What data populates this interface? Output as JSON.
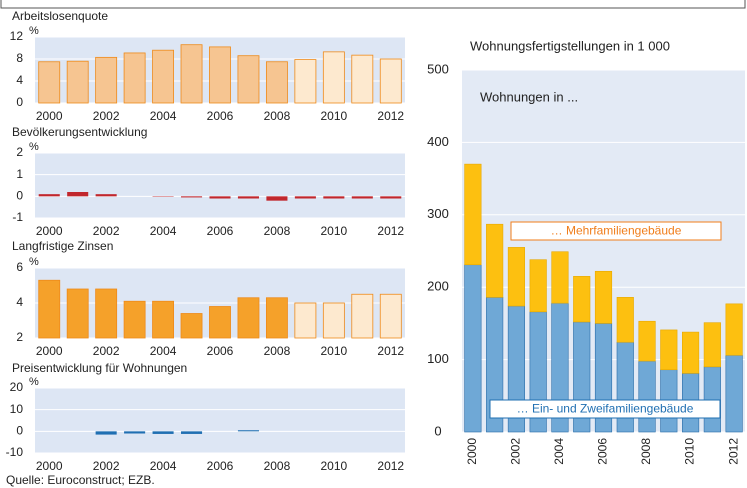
{
  "chart_data": [
    {
      "type": "bar",
      "title": "Arbeitslosenquote",
      "ylabel": "%",
      "categories": [
        "2000",
        null,
        "2002",
        null,
        "2004",
        null,
        "2006",
        null,
        "2008",
        null,
        "2010",
        null,
        "2012"
      ],
      "values": [
        7.5,
        7.6,
        8.3,
        9.1,
        9.6,
        10.6,
        10.2,
        8.6,
        7.5,
        7.9,
        9.3,
        8.7,
        8.0
      ],
      "colors": [
        "#f6c591",
        "#f6c591",
        "#f6c591",
        "#f6c591",
        "#f6c591",
        "#f6c591",
        "#f6c591",
        "#f6c591",
        "#f6c591",
        "#fde9cf",
        "#fde9cf",
        "#fde9cf",
        "#fde9cf"
      ],
      "ylim": [
        0,
        12
      ],
      "yticks": [
        0,
        4,
        8,
        12
      ],
      "grid": true
    },
    {
      "type": "bar",
      "title": "Bevölkerungsentwicklung",
      "ylabel": "%",
      "categories": [
        "2000",
        null,
        "2002",
        null,
        "2004",
        null,
        "2006",
        null,
        "2008",
        null,
        "2010",
        null,
        "2012"
      ],
      "values": [
        0.1,
        0.2,
        0.1,
        0.0,
        -0.02,
        -0.05,
        -0.1,
        -0.1,
        -0.2,
        -0.1,
        -0.1,
        -0.1,
        -0.1
      ],
      "color": "#c1272d",
      "ylim": [
        -1,
        2
      ],
      "yticks": [
        -1,
        0,
        1,
        2
      ],
      "grid": true
    },
    {
      "type": "bar",
      "title": "Langfristige Zinsen",
      "ylabel": "%",
      "categories": [
        "2000",
        null,
        "2002",
        null,
        "2004",
        null,
        "2006",
        null,
        "2008",
        null,
        "2010",
        null,
        "2012"
      ],
      "values": [
        5.3,
        4.8,
        4.8,
        4.1,
        4.1,
        3.4,
        3.8,
        4.3,
        4.3,
        4.0,
        4.0,
        4.5,
        4.5
      ],
      "colors": [
        "#f5a12a",
        "#f5a12a",
        "#f5a12a",
        "#f5a12a",
        "#f5a12a",
        "#f5a12a",
        "#f5a12a",
        "#f5a12a",
        "#f5a12a",
        "#fde9cf",
        "#fde9cf",
        "#fde9cf",
        "#fde9cf"
      ],
      "ylim": [
        2,
        6
      ],
      "yticks": [
        2,
        4,
        6
      ],
      "grid": true
    },
    {
      "type": "bar",
      "title": "Preisentwicklung für Wohnungen",
      "ylabel": "%",
      "categories": [
        "2000",
        null,
        "2002",
        null,
        "2004",
        null,
        "2006",
        null,
        "2008",
        null,
        "2010",
        null,
        "2012"
      ],
      "values": [
        0,
        0,
        -1.5,
        -1,
        -1.2,
        -1.2,
        0,
        0.5,
        0,
        0,
        0,
        0,
        0
      ],
      "color": "#1f6fb2",
      "ylim": [
        -10,
        20
      ],
      "yticks": [
        -10,
        0,
        10,
        20
      ],
      "grid": true
    },
    {
      "type": "stacked_bar",
      "title": "Wohnungsfertigstellungen in 1 000",
      "subtitle": "Wohnungen in ...",
      "categories": [
        "2000",
        null,
        "2002",
        null,
        "2004",
        null,
        "2006",
        null,
        "2008",
        null,
        "2010",
        null,
        "2012"
      ],
      "series": [
        {
          "name": "… Ein- und Zweifamiliengebäude",
          "color": "#6fa8d6",
          "values": [
            231,
            186,
            174,
            166,
            178,
            152,
            150,
            124,
            98,
            86,
            81,
            90,
            106
          ]
        },
        {
          "name": "… Mehrfamiliengebäude",
          "color": "#fdc010",
          "values": [
            139,
            101,
            81,
            72,
            71,
            63,
            72,
            62,
            55,
            55,
            57,
            61,
            71
          ]
        }
      ],
      "ylim": [
        0,
        500
      ],
      "yticks": [
        0,
        100,
        200,
        300,
        400,
        500
      ],
      "grid": true
    }
  ],
  "source": "Quelle: Euroconstruct; EZB."
}
